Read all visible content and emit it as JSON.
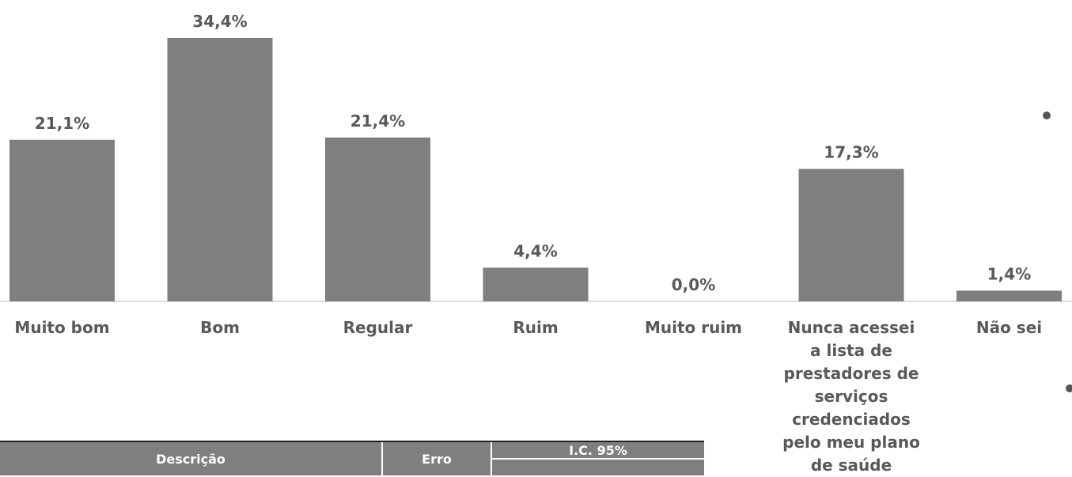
{
  "chart_data": {
    "type": "bar",
    "categories": [
      "Muito bom",
      "Bom",
      "Regular",
      "Ruim",
      "Muito ruim",
      "Nunca acessei a lista de prestadores de serviços credenciados pelo meu plano de saúde",
      "Não sei"
    ],
    "values": [
      21.1,
      34.4,
      21.4,
      4.4,
      0.0,
      17.3,
      1.4
    ],
    "value_labels": [
      "21,1%",
      "34,4%",
      "21,4%",
      "4,4%",
      "0,0%",
      "17,3%",
      "1,4%"
    ],
    "color": "#7f7f7f"
  },
  "table": {
    "headers": [
      "Descrição",
      "Erro",
      "I.C. 95%"
    ]
  }
}
